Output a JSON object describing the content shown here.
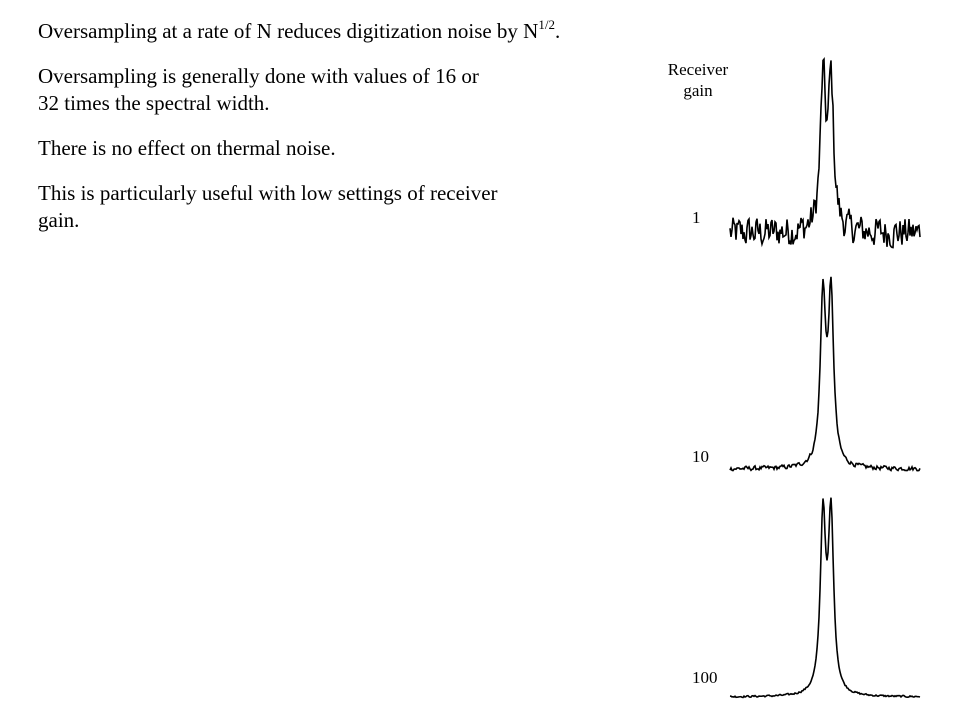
{
  "text": {
    "line1": "Oversampling at a rate of N reduces digitization noise by N",
    "line1_sup": "1/2",
    "line1_end": ".",
    "line2a": "Oversampling is generally done with values of 16 or",
    "line2b": "32 times the spectral width.",
    "line3": "There is no effect on thermal noise.",
    "line4a": "This is particularly useful with low settings of receiver",
    "line4b": "gain."
  },
  "figure": {
    "header_line1": "Receiver",
    "header_line2": "gain",
    "spectra": [
      {
        "gain_label": "1",
        "noise_level": 0.85
      },
      {
        "gain_label": "10",
        "noise_level": 0.12
      },
      {
        "gain_label": "100",
        "noise_level": 0.05
      }
    ],
    "line_color": "#000000"
  }
}
